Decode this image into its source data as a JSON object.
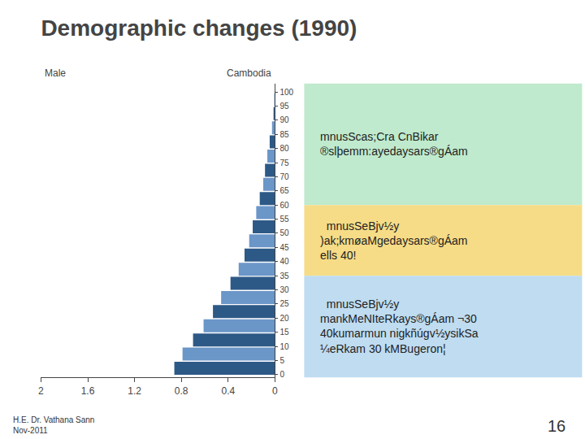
{
  "chart_data": {
    "type": "bar",
    "orientation": "horizontal",
    "title": "Demographic changes (1990)",
    "corner_labels": [
      "Male",
      "Cambodia"
    ],
    "categories": [
      0,
      5,
      10,
      15,
      20,
      25,
      30,
      35,
      40,
      45,
      50,
      55,
      60,
      65,
      70,
      75,
      80,
      85,
      90,
      95,
      100
    ],
    "values": [
      0.86,
      0.79,
      0.7,
      0.61,
      0.53,
      0.46,
      0.38,
      0.31,
      0.26,
      0.22,
      0.19,
      0.16,
      0.13,
      0.1,
      0.085,
      0.065,
      0.045,
      0.025,
      0.012,
      0.006,
      0.002
    ],
    "colors": [
      "#2d5986",
      "#6b96c8",
      "#2d5986",
      "#6b96c8",
      "#2d5986",
      "#6b96c8",
      "#2d5986",
      "#6b96c8",
      "#2d5986",
      "#6b96c8",
      "#2d5986",
      "#6b96c8",
      "#2d5986",
      "#6b96c8",
      "#2d5986",
      "#6b96c8",
      "#2d5986",
      "#6b96c8",
      "#2d5986",
      "#6b96c8",
      "#2d5986"
    ],
    "xlim": [
      2,
      0
    ],
    "xticks": [
      2,
      1.6,
      1.2,
      0.8,
      0.4,
      0
    ],
    "ylim": [
      -1,
      103
    ],
    "yticks": [
      0,
      5,
      10,
      15,
      20,
      25,
      30,
      35,
      40,
      45,
      50,
      55,
      60,
      65,
      70,
      75,
      80,
      85,
      90,
      95,
      100
    ],
    "grid": false,
    "boxes": [
      {
        "range": [
          60,
          103
        ],
        "color": "#b8e8c8",
        "lines": [
          "mnusScas;Cra CnBikar",
          "®slþemm:ayedaysars®gÁam"
        ]
      },
      {
        "range": [
          35,
          60
        ],
        "color": "#f5d87a",
        "lines": [
          "  mnusSeBjv½y",
          ")ak;kmøaMgedaysars®gÁam",
          "ells 40!"
        ]
      },
      {
        "range": [
          -1,
          35
        ],
        "color": "#b8d8f0",
        "lines": [
          "  mnusSeBjv½y",
          "mankMeNIteRkays®gÁam ¬30",
          "40kumarmun nigkñúgv½ysikSa",
          "¼eRkam 30 kMBugeron¦"
        ]
      }
    ],
    "footer": [
      "H.E. Dr. Vathana Sann\nNov-2011",
      "16"
    ]
  }
}
